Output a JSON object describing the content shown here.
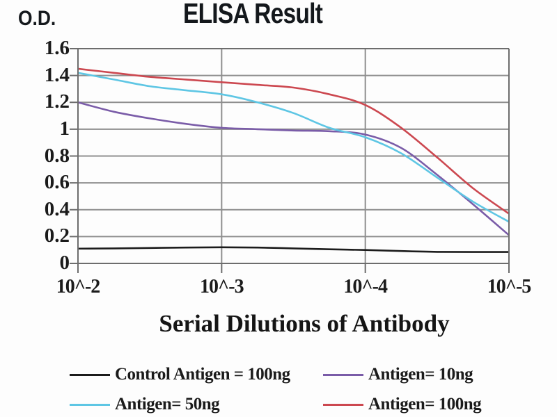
{
  "title": "ELISA Result",
  "y_axis_label": "O.D.",
  "x_axis_title": "Serial Dilutions of Antibody",
  "colors": {
    "control": "#1c1c1c",
    "antigen_10ng": "#7a5ca8",
    "antigen_50ng": "#5ec6e4",
    "antigen_100ng": "#cc4850",
    "grid": "#8e8e8e",
    "frame": "#6d6d6d",
    "text": "#1b1b1b"
  },
  "legend": [
    {
      "label": "Control Antigen = 100ng",
      "color": "#1c1c1c"
    },
    {
      "label": "Antigen= 10ng",
      "color": "#7a5ca8"
    },
    {
      "label": "Antigen= 50ng",
      "color": "#5ec6e4"
    },
    {
      "label": "Antigen= 100ng",
      "color": "#cc4850"
    }
  ],
  "chart_data": {
    "type": "line",
    "title": "ELISA Result",
    "xlabel": "Serial Dilutions of Antibody",
    "ylabel": "O.D.",
    "x_scale": "log10 dilution exponent",
    "x": [
      -2,
      -2.25,
      -2.5,
      -2.75,
      -3,
      -3.25,
      -3.5,
      -3.75,
      -4,
      -4.25,
      -4.5,
      -4.75,
      -5
    ],
    "x_tick_positions": [
      -2,
      -3,
      -4,
      -5
    ],
    "x_tick_labels": [
      "10^-2",
      "10^-3",
      "10^-4",
      "10^-5"
    ],
    "y_ticks": [
      1.6,
      1.4,
      1.2,
      1,
      0.8,
      0.6,
      0.4,
      0.2,
      0
    ],
    "y_tick_labels": [
      "1.6",
      "1.4",
      "1.2",
      "1",
      "0.8",
      "0.6",
      "0.4",
      "0.2",
      "0"
    ],
    "ylim": [
      0,
      1.6
    ],
    "grid": true,
    "legend_position": "below",
    "series": [
      {
        "name": "Control Antigen = 100ng",
        "color": "#1c1c1c",
        "values": [
          0.11,
          0.112,
          0.115,
          0.118,
          0.12,
          0.118,
          0.112,
          0.105,
          0.1,
          0.092,
          0.086,
          0.085,
          0.085
        ]
      },
      {
        "name": "Antigen= 10ng",
        "color": "#7a5ca8",
        "values": [
          1.2,
          1.13,
          1.08,
          1.04,
          1.01,
          1.0,
          0.99,
          0.985,
          0.96,
          0.86,
          0.66,
          0.44,
          0.21
        ]
      },
      {
        "name": "Antigen= 50ng",
        "color": "#5ec6e4",
        "values": [
          1.42,
          1.37,
          1.32,
          1.29,
          1.26,
          1.2,
          1.12,
          1.01,
          0.94,
          0.82,
          0.64,
          0.46,
          0.31
        ]
      },
      {
        "name": "Antigen= 100ng",
        "color": "#cc4850",
        "values": [
          1.45,
          1.42,
          1.39,
          1.37,
          1.35,
          1.33,
          1.31,
          1.26,
          1.18,
          1.01,
          0.79,
          0.56,
          0.37
        ]
      }
    ]
  }
}
